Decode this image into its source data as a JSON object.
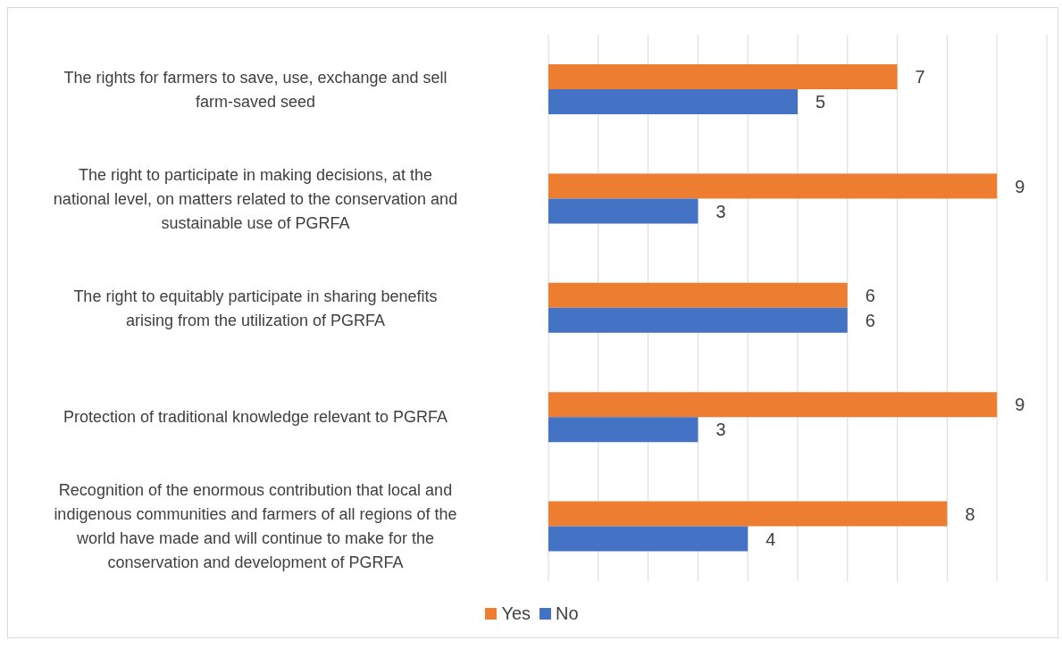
{
  "chart_data": {
    "type": "bar",
    "orientation": "horizontal",
    "categories": [
      "The rights for farmers to save, use, exchange and sell farm-saved seed",
      "The right to participate in making decisions, at the national level, on matters related to the conservation and sustainable use of PGRFA",
      "The right to equitably participate in sharing benefits arising from the utilization of PGRFA",
      "Protection of traditional knowledge relevant to PGRFA",
      "Recognition of the enormous contribution that local and indigenous communities and farmers of all regions of the world have made and will continue to make for the conservation and development of PGRFA"
    ],
    "series": [
      {
        "name": "Yes",
        "color": "#ed7d31",
        "values": [
          7,
          9,
          6,
          9,
          8
        ]
      },
      {
        "name": "No",
        "color": "#4472c4",
        "values": [
          5,
          3,
          6,
          3,
          4
        ]
      }
    ],
    "xlim": [
      0,
      10
    ],
    "tick_labels": "y",
    "grid": "x",
    "legend": "bottom",
    "data_labels": true
  }
}
